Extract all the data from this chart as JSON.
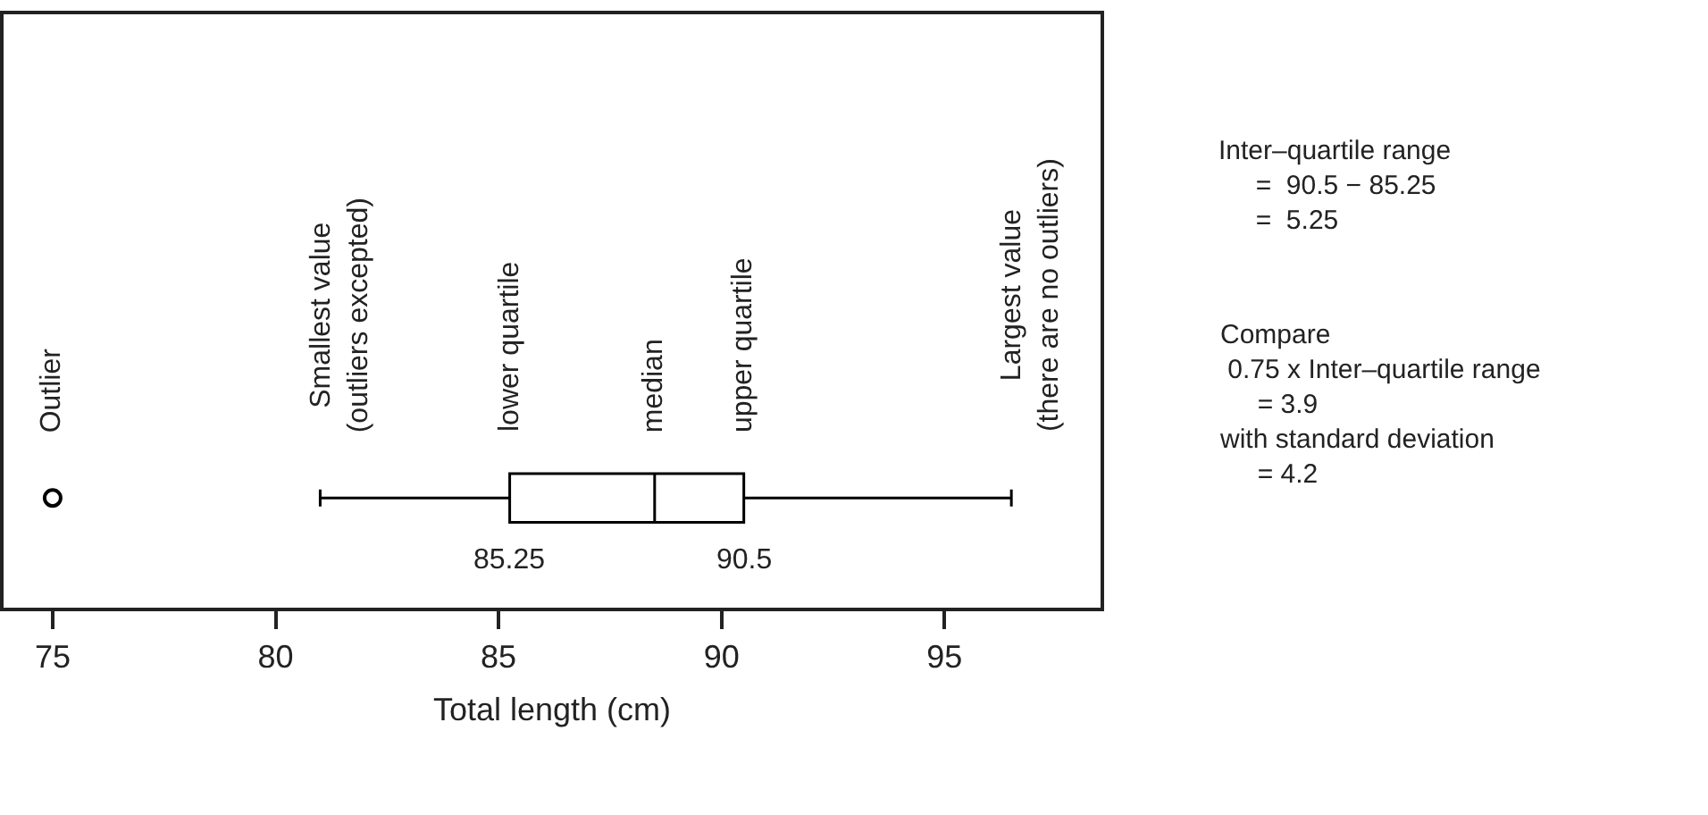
{
  "chart_data": {
    "type": "box",
    "orientation": "horizontal",
    "categories": [
      null
    ],
    "color": "#000000",
    "boxes": [
      {
        "low": 81,
        "q1": 85.25,
        "median": 88.5,
        "q3": 90.5,
        "high": 96.5,
        "outliers": [
          75
        ]
      }
    ],
    "xlim": [
      73.9,
      98.5
    ],
    "xticks": [
      75,
      80,
      85,
      90,
      95
    ],
    "xlabel": "Total length (cm)",
    "tick_labels": "x",
    "annotations": [
      "Outlier",
      "Smallest value\n(outliers excepted)",
      "lower quartile",
      "median",
      "upper quartile",
      "Largest value\n(there are no outliers)",
      "85.25",
      "90.5",
      "Inter–quartile range\n     =  90.5 − 85.25\n     =  5.25",
      "Compare\n 0.75 x Inter–quartile range\n     = 3.9\nwith standard deviation\n     = 4.2"
    ]
  }
}
